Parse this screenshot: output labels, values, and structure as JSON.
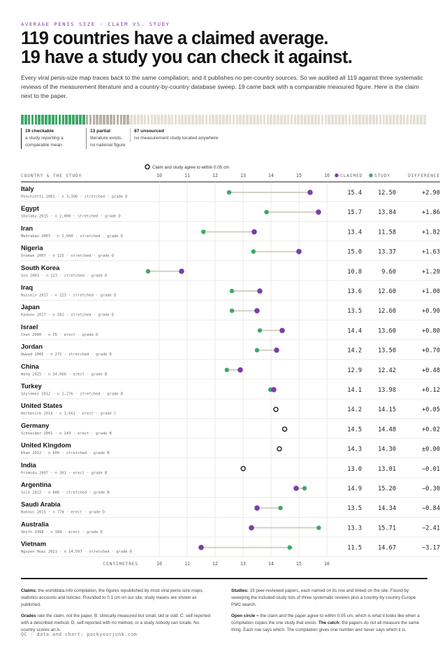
{
  "kicker": "AVERAGE PENIS SIZE · CLAIM VS. STUDY",
  "headline": {
    "line1": "119 countries have a claimed average.",
    "line2": "19 have a study you can check it against."
  },
  "intro": "Every viral penis-size map traces back to the same compilation, and it publishes no per-country sources. So we audited all 119 against three systematic reviews of the measurement literature and a country-by-country database sweep. 19 came back with a comparable measured figure. Here is the claim next to the paper.",
  "strip": {
    "counts": {
      "checkable": 19,
      "partial": 13,
      "unsourced": 87
    },
    "colors": {
      "checkable": "#3ea86b",
      "partial": "#b7b1a6",
      "unsourced": "#e4e0d6"
    }
  },
  "segments": {
    "checkable": {
      "count": "19 checkable",
      "desc1": "a study reporting a",
      "desc2": "comparable mean"
    },
    "partial": {
      "count": "13 partial",
      "desc1": "literature exists,",
      "desc2": "no national figure"
    },
    "unsourced": {
      "count": "87 unsourced",
      "desc1": "no measurement study located anywhere"
    }
  },
  "columns": {
    "country": "COUNTRY & THE STUDY",
    "claimed": "CLAIMED",
    "study": "STUDY",
    "difference": "DIFFERENCE"
  },
  "legend_note": "Claim and study agree to within 0.05 cm",
  "axis_label": "CENTIMETRES",
  "colors": {
    "claimed": "#7a3fa8",
    "study": "#3ea86b",
    "connector": "#d4d0c4",
    "grid": "#e8e5de",
    "row_rule": "#e5e5e5"
  },
  "chart_data": {
    "type": "dumbbell",
    "xlim": [
      9.5,
      16.5
    ],
    "xticks": [
      10,
      11,
      12,
      13,
      14,
      15,
      16
    ],
    "series": [
      {
        "name": "CLAIMED"
      },
      {
        "name": "STUDY"
      }
    ],
    "rows": [
      {
        "country": "Italy",
        "source": "Ponchietti 2001 · n 3,300 · stretched · grade D",
        "claimed": 15.4,
        "study": 12.5,
        "claimed_label": "15.4",
        "study_label": "12.50",
        "diff": "+2.90"
      },
      {
        "country": "Egypt",
        "source": "Shalaby 2015 · n 2,000 · stretched · grade D",
        "claimed": 15.7,
        "study": 13.84,
        "claimed_label": "15.7",
        "study_label": "13.84",
        "diff": "+1.86"
      },
      {
        "country": "Iran",
        "source": "Mehraban 2007 · n 1,500 · stretched · grade D",
        "claimed": 13.4,
        "study": 11.58,
        "claimed_label": "13.4",
        "study_label": "11.58",
        "diff": "+1.82"
      },
      {
        "country": "Nigeria",
        "source": "Orakwe 2007 · n 115 · stretched · grade D",
        "claimed": 15.0,
        "study": 13.37,
        "claimed_label": "15.0",
        "study_label": "13.37",
        "diff": "+1.63"
      },
      {
        "country": "South Korea",
        "source": "Son 2003 · n 123 · stretched · grade D",
        "claimed": 10.8,
        "study": 9.6,
        "claimed_label": "10.8",
        "study_label": "9.60",
        "diff": "+1.20"
      },
      {
        "country": "Iraq",
        "source": "Hussein 2017 · n 223 · stretched · grade D",
        "claimed": 13.6,
        "study": 12.6,
        "claimed_label": "13.6",
        "study_label": "12.60",
        "diff": "+1.00"
      },
      {
        "country": "Japan",
        "source": "Kadono 2017 · n 102 · stretched · grade D",
        "claimed": 13.5,
        "study": 12.6,
        "claimed_label": "13.5",
        "study_label": "12.60",
        "diff": "+0.90"
      },
      {
        "country": "Israel",
        "source": "Chen 2000 · n 55 · erect · grade D",
        "claimed": 14.4,
        "study": 13.6,
        "claimed_label": "14.4",
        "study_label": "13.60",
        "diff": "+0.80"
      },
      {
        "country": "Jordan",
        "source": "Awwad 2005 · n 271 · stretched · grade D",
        "claimed": 14.2,
        "study": 13.5,
        "claimed_label": "14.2",
        "study_label": "13.50",
        "diff": "+0.70"
      },
      {
        "country": "China",
        "source": "Wang 2025 · n 34,060 · erect · grade B",
        "claimed": 12.9,
        "study": 12.42,
        "claimed_label": "12.9",
        "study_label": "12.42",
        "diff": "+0.48"
      },
      {
        "country": "Turkey",
        "source": "Söylemez 2012 · n 2,276 · stretched · grade B",
        "claimed": 14.1,
        "study": 13.98,
        "claimed_label": "14.1",
        "study_label": "13.98",
        "diff": "+0.12"
      },
      {
        "country": "United States",
        "source": "Herbenick 2014 · n 1,661 · erect · grade C",
        "claimed": 14.2,
        "study": 14.15,
        "claimed_label": "14.2",
        "study_label": "14.15",
        "diff": "+0.05"
      },
      {
        "country": "Germany",
        "source": "Schneider 2001 · n 143 · erect · grade B",
        "claimed": 14.5,
        "study": 14.48,
        "claimed_label": "14.5",
        "study_label": "14.48",
        "diff": "+0.02"
      },
      {
        "country": "United Kingdom",
        "source": "Khan 2012 · n 609 · stretched · grade B",
        "claimed": 14.3,
        "study": 14.3,
        "claimed_label": "14.3",
        "study_label": "14.30",
        "diff": "±0.00"
      },
      {
        "country": "India",
        "source": "Promodu 2007 · n 301 · erect · grade B",
        "claimed": 13.0,
        "study": 13.01,
        "claimed_label": "13.0",
        "study_label": "13.01",
        "diff": "−0.01"
      },
      {
        "country": "Argentina",
        "source": "Solé 2022 · n 800 · stretched · grade B",
        "claimed": 14.9,
        "study": 15.2,
        "claimed_label": "14.9",
        "study_label": "15.20",
        "diff": "−0.30"
      },
      {
        "country": "Saudi Arabia",
        "source": "Habous 2015 · n 778 · erect · grade D",
        "claimed": 13.5,
        "study": 14.34,
        "claimed_label": "13.5",
        "study_label": "14.34",
        "diff": "−0.84"
      },
      {
        "country": "Australia",
        "source": "Smith 1998 · n 184 · erect · grade D",
        "claimed": 13.3,
        "study": 15.71,
        "claimed_label": "13.3",
        "study_label": "15.71",
        "diff": "−2.41"
      },
      {
        "country": "Vietnam",
        "source": "Nguyen Hoai 2021 · n 14,597 · stretched · grade D",
        "claimed": 11.5,
        "study": 14.67,
        "claimed_label": "11.5",
        "study_label": "14.67",
        "diff": "−3.17"
      }
    ]
  },
  "notes": {
    "claims_head": "Claims:",
    "claims_text": " the worlddata.info compilation, the figures republished by most viral penis-size maps, statistics accounts and listicles. Rounded to 0.1 cm on our site; study means are shown as published.",
    "grades_head": "Grades",
    "grades_text": " rate the claim, not the paper. B: clinically measured but small, old or odd. C: self-reported with a described method. D: self-reported with no method, or a study nobody can locate. No country scores an A.",
    "studies_head": "Studies:",
    "studies_text": " 19 peer-reviewed papers, each named on its row and linked on the site. Found by sweeping the included-study lists of three systematic reviews plus a country-by-country Europe PMC search.",
    "circle_head": "Open circle",
    "circle_text": " = the claim and the paper agree to within 0.05 cm, which is what it looks like when a compilation copies the one study that exists. ",
    "catch_head": "The catch:",
    "catch_text": " the papers do not all measure the same thing. Each row says which. The compilation gives one number and never says which it is."
  },
  "credit": "OC · data and chart: packyourjunk.com"
}
